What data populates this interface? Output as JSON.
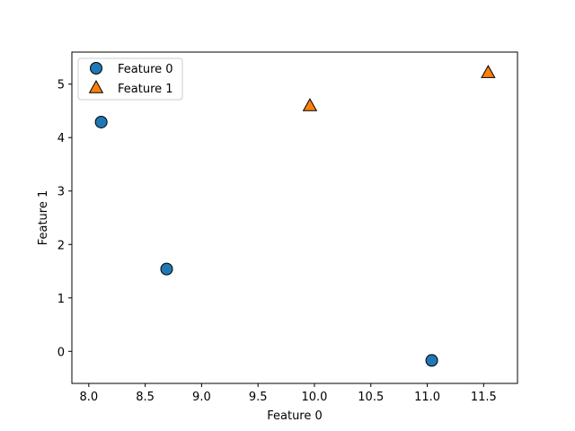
{
  "chart_data": {
    "type": "scatter",
    "title": "",
    "xlabel": "Feature 0",
    "ylabel": "Feature 1",
    "xlim": [
      7.85,
      11.8
    ],
    "ylim": [
      -0.6,
      5.6
    ],
    "xticks": [
      "8.0",
      "8.5",
      "9.0",
      "9.5",
      "10.0",
      "10.5",
      "11.0",
      "11.5"
    ],
    "xtick_values": [
      8.0,
      8.5,
      9.0,
      9.5,
      10.0,
      10.5,
      11.0,
      11.5
    ],
    "yticks": [
      "0",
      "1",
      "2",
      "3",
      "4",
      "5"
    ],
    "ytick_values": [
      0,
      1,
      2,
      3,
      4,
      5
    ],
    "grid": false,
    "legend_position": "top-left",
    "series": [
      {
        "name": "Feature 0",
        "marker": "circle",
        "color": "#1f77b4",
        "points": [
          {
            "x": 8.11,
            "y": 4.29
          },
          {
            "x": 8.69,
            "y": 1.54
          },
          {
            "x": 11.04,
            "y": -0.17
          }
        ]
      },
      {
        "name": "Feature 1",
        "marker": "triangle",
        "color": "#ff7f0e",
        "points": [
          {
            "x": 9.96,
            "y": 4.59
          },
          {
            "x": 11.54,
            "y": 5.21
          }
        ]
      }
    ]
  }
}
